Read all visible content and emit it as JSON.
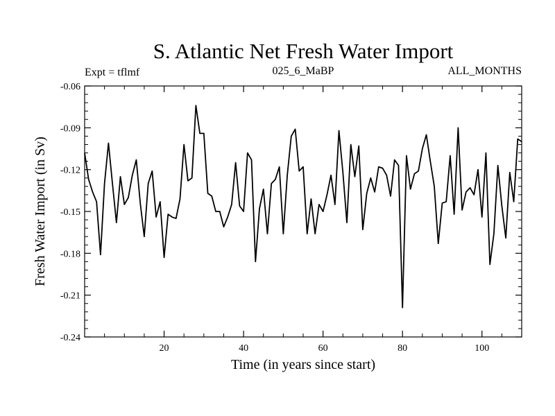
{
  "chart_data": {
    "type": "line",
    "title": "S. Atlantic Net Fresh Water Import",
    "subtitle_left": "Expt = tflmf",
    "subtitle_center": "025_6_MaBP",
    "subtitle_right": "ALL_MONTHS",
    "xlabel": "Time (in years since start)",
    "ylabel": "Fresh Water Import (in Sv)",
    "xlim": [
      0,
      110
    ],
    "ylim": [
      -0.24,
      -0.06
    ],
    "x_ticks": [
      20,
      40,
      60,
      80,
      100
    ],
    "x_tick_labels": [
      "20",
      "40",
      "60",
      "80",
      "100"
    ],
    "y_ticks": [
      -0.24,
      -0.21,
      -0.18,
      -0.15,
      -0.12,
      -0.09,
      -0.06
    ],
    "y_tick_labels": [
      "-0.24",
      "-0.21",
      "-0.18",
      "-0.15",
      "-0.12",
      "-0.09",
      "-0.06"
    ],
    "line_color": "#000000",
    "series": [
      {
        "name": "fresh water import",
        "x": [
          0,
          1,
          2,
          3,
          4,
          5,
          6,
          7,
          8,
          9,
          10,
          11,
          12,
          13,
          14,
          15,
          16,
          17,
          18,
          19,
          20,
          21,
          22,
          23,
          24,
          25,
          26,
          27,
          28,
          29,
          30,
          31,
          32,
          33,
          34,
          35,
          36,
          37,
          38,
          39,
          40,
          41,
          42,
          43,
          44,
          45,
          46,
          47,
          48,
          49,
          50,
          51,
          52,
          53,
          54,
          55,
          56,
          57,
          58,
          59,
          60,
          61,
          62,
          63,
          64,
          65,
          66,
          67,
          68,
          69,
          70,
          71,
          72,
          73,
          74,
          75,
          76,
          77,
          78,
          79,
          80,
          81,
          82,
          83,
          84,
          85,
          86,
          87,
          88,
          89,
          90,
          91,
          92,
          93,
          94,
          95,
          96,
          97,
          98,
          99,
          100,
          101,
          102,
          103,
          104,
          105,
          106,
          107,
          108,
          109,
          110
        ],
        "values": [
          -0.108,
          -0.127,
          -0.136,
          -0.143,
          -0.181,
          -0.13,
          -0.101,
          -0.13,
          -0.158,
          -0.125,
          -0.145,
          -0.14,
          -0.124,
          -0.113,
          -0.144,
          -0.168,
          -0.13,
          -0.121,
          -0.154,
          -0.143,
          -0.183,
          -0.152,
          -0.154,
          -0.155,
          -0.141,
          -0.102,
          -0.128,
          -0.126,
          -0.074,
          -0.094,
          -0.094,
          -0.137,
          -0.139,
          -0.15,
          -0.15,
          -0.161,
          -0.154,
          -0.145,
          -0.115,
          -0.146,
          -0.15,
          -0.108,
          -0.113,
          -0.186,
          -0.148,
          -0.134,
          -0.166,
          -0.13,
          -0.127,
          -0.118,
          -0.166,
          -0.124,
          -0.096,
          -0.091,
          -0.121,
          -0.118,
          -0.166,
          -0.141,
          -0.166,
          -0.145,
          -0.15,
          -0.138,
          -0.124,
          -0.145,
          -0.092,
          -0.122,
          -0.158,
          -0.102,
          -0.125,
          -0.103,
          -0.163,
          -0.137,
          -0.126,
          -0.136,
          -0.118,
          -0.119,
          -0.124,
          -0.139,
          -0.113,
          -0.117,
          -0.219,
          -0.11,
          -0.134,
          -0.123,
          -0.121,
          -0.105,
          -0.095,
          -0.114,
          -0.132,
          -0.173,
          -0.144,
          -0.143,
          -0.11,
          -0.152,
          -0.09,
          -0.149,
          -0.136,
          -0.133,
          -0.138,
          -0.12,
          -0.154,
          -0.108,
          -0.188,
          -0.166,
          -0.117,
          -0.146,
          -0.169,
          -0.122,
          -0.143,
          -0.098,
          -0.1
        ]
      }
    ]
  }
}
